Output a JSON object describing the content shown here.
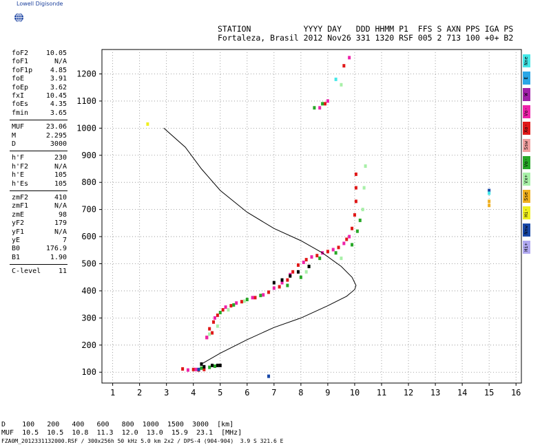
{
  "app": {
    "logo_text": "Lowell Digisonde"
  },
  "header": {
    "line1": "STATION           YYYY DAY   DDD HHMM P1  FFS S AXN PPS IGA PS",
    "line2": "Fortaleza, Brasil 2012 Nov26 331 1320 RSF 005 2 713 100 +0+ B2"
  },
  "params_group1": [
    {
      "label": "foF2",
      "value": "10.05"
    },
    {
      "label": "foF1",
      "value": "N/A"
    },
    {
      "label": "foF1p",
      "value": "4.85"
    },
    {
      "label": "foE",
      "value": "3.91"
    },
    {
      "label": "foEp",
      "value": "3.62"
    },
    {
      "label": "fxI",
      "value": "10.45"
    },
    {
      "label": "foEs",
      "value": "4.35"
    },
    {
      "label": "fmin",
      "value": "3.65"
    }
  ],
  "params_group2": [
    {
      "label": "MUF",
      "value": "23.06"
    },
    {
      "label": "M",
      "value": "2.295"
    },
    {
      "label": "D",
      "value": "3000"
    }
  ],
  "params_group3": [
    {
      "label": "h'F",
      "value": "230"
    },
    {
      "label": "h'F2",
      "value": "N/A"
    },
    {
      "label": "h'E",
      "value": "105"
    },
    {
      "label": "h'Es",
      "value": "105"
    }
  ],
  "params_group4": [
    {
      "label": "zmF2",
      "value": "410"
    },
    {
      "label": "zmF1",
      "value": "N/A"
    },
    {
      "label": "zmE",
      "value": "98"
    },
    {
      "label": "yF2",
      "value": "179"
    },
    {
      "label": "yF1",
      "value": "N/A"
    },
    {
      "label": "yE",
      "value": "7"
    },
    {
      "label": "B0",
      "value": "176.9"
    },
    {
      "label": "B1",
      "value": "1.90"
    }
  ],
  "params_group5": [
    {
      "label": "C-level",
      "value": "11"
    }
  ],
  "legend": [
    {
      "label": "Nne",
      "color": "#44e8e8"
    },
    {
      "label": "E",
      "color": "#2aa6e6"
    },
    {
      "label": "W",
      "color": "#a020a8"
    },
    {
      "label": "Vo-",
      "color": "#ee22aa"
    },
    {
      "label": "Xo-",
      "color": "#e01818"
    },
    {
      "label": "Ssw",
      "color": "#f0a0a0"
    },
    {
      "label": "Vo-",
      "color": "#28a828"
    },
    {
      "label": "Vx+",
      "color": "#a8f0a8"
    },
    {
      "label": "Sse",
      "color": "#f0b020"
    },
    {
      "label": "Hi-",
      "color": "#f0f020"
    },
    {
      "label": "Nnw",
      "color": "#1848a8"
    },
    {
      "label": "Hi+",
      "color": "#b0a8f0"
    }
  ],
  "footer": {
    "d_row": "D    100   200   400   600   800  1000  1500  3000  [km]",
    "muf_row": "MUF  10.5  10.5  10.8  11.3  12.0  13.0  15.9  23.1  [MHz]",
    "file_row": "FZA0M_2012331132000.RSF / 300x256h 50 kHz 5.0 km 2x2 / DPS-4 (904-904)  3.9 S 321.6 E"
  },
  "chart_data": {
    "type": "scatter",
    "xlim": [
      0.6,
      16.2
    ],
    "ylim": [
      60,
      1290
    ],
    "x_ticks": [
      1,
      2,
      3,
      4,
      5,
      6,
      7,
      8,
      9,
      10,
      11,
      12,
      13,
      14,
      15,
      16
    ],
    "y_ticks": [
      100,
      200,
      300,
      400,
      500,
      600,
      700,
      800,
      900,
      1000,
      1100,
      1200
    ],
    "grid": true,
    "profile_curve": {
      "name": "profile",
      "points": [
        [
          4.3,
          130
        ],
        [
          5.0,
          170
        ],
        [
          6.0,
          220
        ],
        [
          7.0,
          265
        ],
        [
          8.0,
          300
        ],
        [
          9.0,
          345
        ],
        [
          9.7,
          380
        ],
        [
          10.0,
          405
        ],
        [
          10.05,
          420
        ],
        [
          9.9,
          450
        ],
        [
          9.5,
          490
        ],
        [
          8.8,
          540
        ],
        [
          8.0,
          585
        ],
        [
          7.0,
          630
        ],
        [
          6.0,
          690
        ],
        [
          5.0,
          770
        ],
        [
          4.3,
          850
        ],
        [
          3.7,
          930
        ],
        [
          2.9,
          1000
        ]
      ]
    },
    "series": [
      {
        "color": "#e01818",
        "points": [
          [
            4.6,
            260
          ],
          [
            4.75,
            285
          ],
          [
            4.9,
            310
          ],
          [
            5.1,
            330
          ],
          [
            5.4,
            345
          ],
          [
            5.8,
            360
          ],
          [
            6.3,
            375
          ],
          [
            6.8,
            395
          ],
          [
            7.2,
            415
          ],
          [
            7.5,
            440
          ],
          [
            7.7,
            470
          ],
          [
            7.9,
            495
          ],
          [
            8.2,
            515
          ],
          [
            8.6,
            530
          ],
          [
            9.0,
            545
          ],
          [
            9.4,
            560
          ],
          [
            9.7,
            590
          ],
          [
            9.9,
            630
          ],
          [
            10.0,
            680
          ],
          [
            10.05,
            730
          ],
          [
            10.05,
            780
          ],
          [
            10.05,
            830
          ],
          [
            4.0,
            110
          ],
          [
            4.2,
            108
          ],
          [
            3.6,
            112
          ],
          [
            4.4,
            110
          ],
          [
            4.5,
            228
          ],
          [
            4.7,
            245
          ],
          [
            8.9,
            1090
          ],
          [
            9.6,
            1230
          ]
        ]
      },
      {
        "color": "#ee22aa",
        "points": [
          [
            4.8,
            300
          ],
          [
            5.2,
            340
          ],
          [
            5.6,
            355
          ],
          [
            6.2,
            375
          ],
          [
            6.6,
            385
          ],
          [
            7.0,
            410
          ],
          [
            7.3,
            430
          ],
          [
            7.6,
            460
          ],
          [
            8.1,
            505
          ],
          [
            8.4,
            525
          ],
          [
            8.8,
            540
          ],
          [
            9.2,
            552
          ],
          [
            9.6,
            575
          ],
          [
            9.8,
            600
          ],
          [
            3.8,
            108
          ],
          [
            4.1,
            110
          ],
          [
            4.5,
            228
          ],
          [
            8.7,
            1075
          ],
          [
            9.0,
            1100
          ],
          [
            9.8,
            1260
          ]
        ]
      },
      {
        "color": "#28a828",
        "points": [
          [
            5.0,
            320
          ],
          [
            5.5,
            348
          ],
          [
            6.0,
            368
          ],
          [
            6.5,
            383
          ],
          [
            7.5,
            420
          ],
          [
            8.0,
            450
          ],
          [
            8.3,
            490
          ],
          [
            8.7,
            520
          ],
          [
            9.3,
            540
          ],
          [
            9.9,
            570
          ],
          [
            10.1,
            620
          ],
          [
            10.2,
            660
          ],
          [
            4.3,
            115
          ],
          [
            4.6,
            118
          ],
          [
            4.8,
            122
          ],
          [
            8.5,
            1075
          ],
          [
            8.8,
            1090
          ]
        ]
      },
      {
        "color": "#a8f0a8",
        "points": [
          [
            4.9,
            270
          ],
          [
            5.3,
            330
          ],
          [
            5.9,
            362
          ],
          [
            8.2,
            470
          ],
          [
            9.5,
            520
          ],
          [
            10.3,
            700
          ],
          [
            10.35,
            780
          ],
          [
            10.4,
            860
          ],
          [
            4.6,
            240
          ],
          [
            9.5,
            1160
          ]
        ]
      },
      {
        "color": "#000000",
        "points": [
          [
            7.0,
            430
          ],
          [
            7.3,
            440
          ],
          [
            7.6,
            455
          ],
          [
            7.9,
            470
          ],
          [
            8.3,
            490
          ],
          [
            4.4,
            120
          ],
          [
            4.7,
            125
          ],
          [
            4.9,
            125
          ],
          [
            5.0,
            125
          ],
          [
            4.3,
            130
          ]
        ]
      },
      {
        "color": "#1848a8",
        "points": [
          [
            4.2,
            110
          ],
          [
            6.8,
            85
          ],
          [
            15.0,
            770
          ]
        ]
      },
      {
        "color": "#f0b020",
        "points": [
          [
            15.0,
            730
          ],
          [
            15.0,
            715
          ]
        ]
      },
      {
        "color": "#f0f020",
        "points": [
          [
            2.3,
            1015
          ]
        ]
      },
      {
        "color": "#44e8e8",
        "points": [
          [
            15.0,
            760
          ],
          [
            9.3,
            1180
          ]
        ]
      }
    ]
  }
}
